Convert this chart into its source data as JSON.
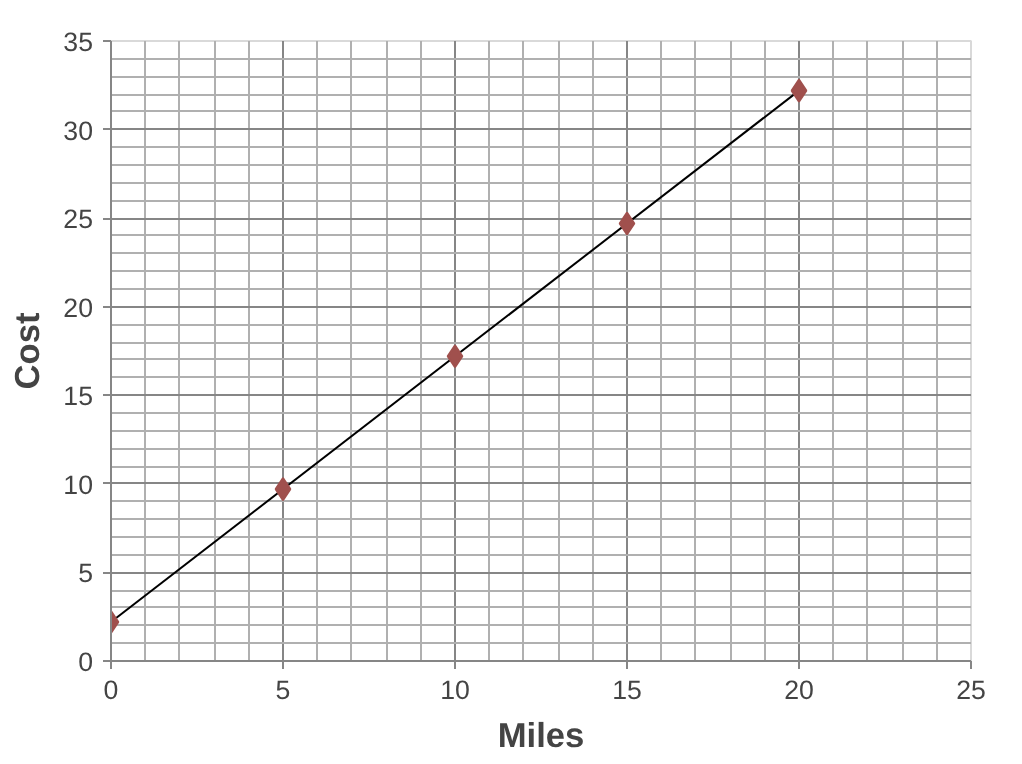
{
  "chart_data": {
    "type": "scatter",
    "xlabel": "Miles",
    "ylabel": "Cost",
    "grid": true,
    "xlim": [
      0,
      25
    ],
    "xticks": [
      0,
      5,
      10,
      15,
      20,
      25
    ],
    "ylim": [
      0,
      35
    ],
    "yticks": [
      0,
      5,
      10,
      15,
      20,
      25,
      30,
      35
    ],
    "series": [
      {
        "color": "#a0504d",
        "marker": "diamond",
        "x": [
          0,
          5,
          10,
          15,
          20
        ],
        "values": [
          2.2,
          9.7,
          17.2,
          24.7,
          32.2
        ]
      },
      {
        "type": "line",
        "marker": "none",
        "color": "#000000",
        "x": [
          0,
          20
        ],
        "values": [
          2.2,
          32.2
        ]
      }
    ]
  }
}
